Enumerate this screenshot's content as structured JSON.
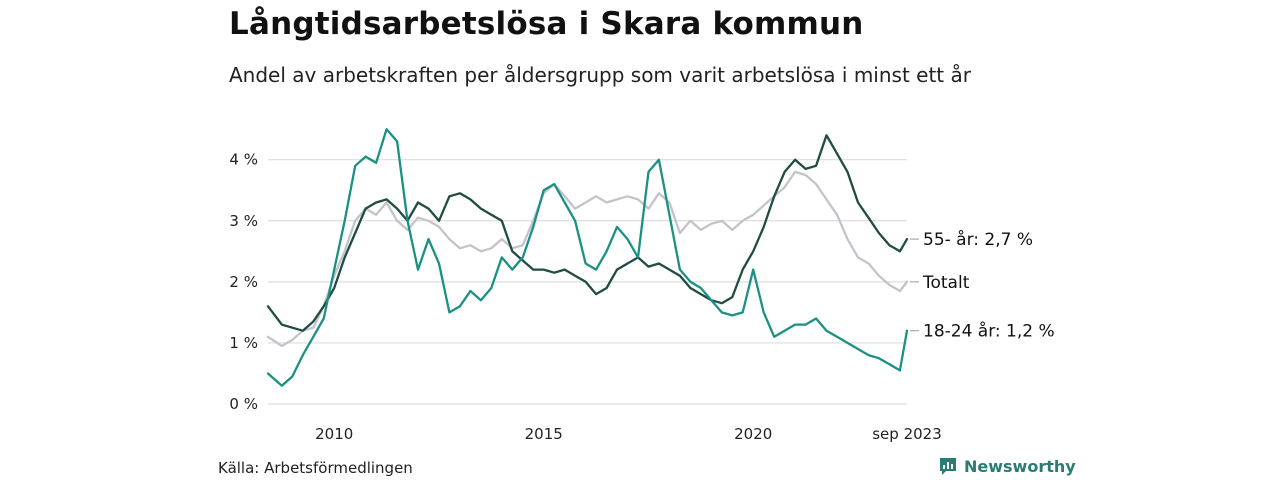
{
  "header": {
    "title": "Långtidsarbetslösa i Skara kommun",
    "subtitle": "Andel av arbetskraften per åldersgrupp som varit arbetslösa i minst ett år"
  },
  "footer": {
    "source": "Källa: Arbetsförmedlingen",
    "brand": "Newsworthy"
  },
  "colors": {
    "dark_green": "#1f4d40",
    "teal": "#1a9182",
    "grey": "#c3c3cc",
    "grid": "#dddddd"
  },
  "chart_data": {
    "type": "line",
    "title": "Långtidsarbetslösa i Skara kommun",
    "subtitle": "Andel av arbetskraften per åldersgrupp som varit arbetslösa i minst ett år",
    "xlabel": "",
    "ylabel": "",
    "x_unit": "year",
    "xlim": [
      2008.42,
      2023.67
    ],
    "ylim": [
      0,
      4.5
    ],
    "grid": true,
    "y_ticks": [
      {
        "value": 0,
        "label": "0 %"
      },
      {
        "value": 1,
        "label": "1 %"
      },
      {
        "value": 2,
        "label": "2 %"
      },
      {
        "value": 3,
        "label": "3 %"
      },
      {
        "value": 4,
        "label": "4 %"
      }
    ],
    "x_ticks": [
      {
        "value": 2010,
        "label": "2010"
      },
      {
        "value": 2015,
        "label": "2015"
      },
      {
        "value": 2020,
        "label": "2020"
      },
      {
        "value": 2023.67,
        "label": "sep 2023"
      }
    ],
    "series": [
      {
        "name": "Totalt",
        "end_label": "Totalt",
        "color": "#c3c3cc",
        "x": [
          2008.42,
          2008.75,
          2009.0,
          2009.25,
          2009.5,
          2009.75,
          2010.0,
          2010.25,
          2010.5,
          2010.75,
          2011.0,
          2011.25,
          2011.5,
          2011.75,
          2012.0,
          2012.25,
          2012.5,
          2012.75,
          2013.0,
          2013.25,
          2013.5,
          2013.75,
          2014.0,
          2014.25,
          2014.5,
          2014.75,
          2015.0,
          2015.25,
          2015.5,
          2015.75,
          2016.0,
          2016.25,
          2016.5,
          2016.75,
          2017.0,
          2017.25,
          2017.5,
          2017.75,
          2018.0,
          2018.25,
          2018.5,
          2018.75,
          2019.0,
          2019.25,
          2019.5,
          2019.75,
          2020.0,
          2020.25,
          2020.5,
          2020.75,
          2021.0,
          2021.25,
          2021.5,
          2021.75,
          2022.0,
          2022.25,
          2022.5,
          2022.75,
          2023.0,
          2023.25,
          2023.5,
          2023.67
        ],
        "y": [
          1.1,
          0.95,
          1.05,
          1.2,
          1.25,
          1.6,
          2.1,
          2.5,
          3.0,
          3.2,
          3.1,
          3.3,
          3.0,
          2.85,
          3.05,
          3.0,
          2.9,
          2.7,
          2.55,
          2.6,
          2.5,
          2.55,
          2.7,
          2.55,
          2.6,
          3.0,
          3.45,
          3.6,
          3.4,
          3.2,
          3.3,
          3.4,
          3.3,
          3.35,
          3.4,
          3.35,
          3.2,
          3.45,
          3.3,
          2.8,
          3.0,
          2.85,
          2.95,
          3.0,
          2.85,
          3.0,
          3.1,
          3.25,
          3.4,
          3.55,
          3.8,
          3.75,
          3.6,
          3.35,
          3.1,
          2.7,
          2.4,
          2.3,
          2.1,
          1.95,
          1.85,
          2.0
        ]
      },
      {
        "name": "55- år",
        "end_label": "55- år: 2,7 %",
        "color": "#1f4d40",
        "x": [
          2008.42,
          2008.75,
          2009.0,
          2009.25,
          2009.5,
          2009.75,
          2010.0,
          2010.25,
          2010.5,
          2010.75,
          2011.0,
          2011.25,
          2011.5,
          2011.75,
          2012.0,
          2012.25,
          2012.5,
          2012.75,
          2013.0,
          2013.25,
          2013.5,
          2013.75,
          2014.0,
          2014.25,
          2014.5,
          2014.75,
          2015.0,
          2015.25,
          2015.5,
          2015.75,
          2016.0,
          2016.25,
          2016.5,
          2016.75,
          2017.0,
          2017.25,
          2017.5,
          2017.75,
          2018.0,
          2018.25,
          2018.5,
          2018.75,
          2019.0,
          2019.25,
          2019.5,
          2019.75,
          2020.0,
          2020.25,
          2020.5,
          2020.75,
          2021.0,
          2021.25,
          2021.5,
          2021.75,
          2022.0,
          2022.25,
          2022.5,
          2022.75,
          2023.0,
          2023.25,
          2023.5,
          2023.67
        ],
        "y": [
          1.6,
          1.3,
          1.25,
          1.2,
          1.35,
          1.6,
          1.9,
          2.4,
          2.8,
          3.2,
          3.3,
          3.35,
          3.2,
          3.0,
          3.3,
          3.2,
          3.0,
          3.4,
          3.45,
          3.35,
          3.2,
          3.1,
          3.0,
          2.5,
          2.35,
          2.2,
          2.2,
          2.15,
          2.2,
          2.1,
          2.0,
          1.8,
          1.9,
          2.2,
          2.3,
          2.4,
          2.25,
          2.3,
          2.2,
          2.1,
          1.9,
          1.8,
          1.7,
          1.65,
          1.75,
          2.2,
          2.5,
          2.9,
          3.4,
          3.8,
          4.0,
          3.85,
          3.9,
          4.4,
          4.1,
          3.8,
          3.3,
          3.05,
          2.8,
          2.6,
          2.5,
          2.7
        ]
      },
      {
        "name": "18-24 år",
        "end_label": "18-24 år: 1,2 %",
        "color": "#1a9182",
        "x": [
          2008.42,
          2008.75,
          2009.0,
          2009.25,
          2009.5,
          2009.75,
          2010.0,
          2010.25,
          2010.5,
          2010.75,
          2011.0,
          2011.25,
          2011.5,
          2011.75,
          2012.0,
          2012.25,
          2012.5,
          2012.75,
          2013.0,
          2013.25,
          2013.5,
          2013.75,
          2014.0,
          2014.25,
          2014.5,
          2014.75,
          2015.0,
          2015.25,
          2015.5,
          2015.75,
          2016.0,
          2016.25,
          2016.5,
          2016.75,
          2017.0,
          2017.25,
          2017.5,
          2017.75,
          2018.0,
          2018.25,
          2018.5,
          2018.75,
          2019.0,
          2019.25,
          2019.5,
          2019.75,
          2020.0,
          2020.25,
          2020.5,
          2020.75,
          2021.0,
          2021.25,
          2021.5,
          2021.75,
          2022.0,
          2022.25,
          2022.5,
          2022.75,
          2023.0,
          2023.25,
          2023.5,
          2023.67
        ],
        "y": [
          0.5,
          0.3,
          0.45,
          0.8,
          1.1,
          1.4,
          2.2,
          3.0,
          3.9,
          4.05,
          3.95,
          4.5,
          4.3,
          3.0,
          2.2,
          2.7,
          2.3,
          1.5,
          1.6,
          1.85,
          1.7,
          1.9,
          2.4,
          2.2,
          2.4,
          2.9,
          3.5,
          3.6,
          3.3,
          3.0,
          2.3,
          2.2,
          2.5,
          2.9,
          2.7,
          2.4,
          3.8,
          4.0,
          3.1,
          2.2,
          2.0,
          1.9,
          1.7,
          1.5,
          1.45,
          1.5,
          2.2,
          1.5,
          1.1,
          1.2,
          1.3,
          1.3,
          1.4,
          1.2,
          1.1,
          1.0,
          0.9,
          0.8,
          0.75,
          0.65,
          0.55,
          1.2
        ]
      }
    ]
  }
}
